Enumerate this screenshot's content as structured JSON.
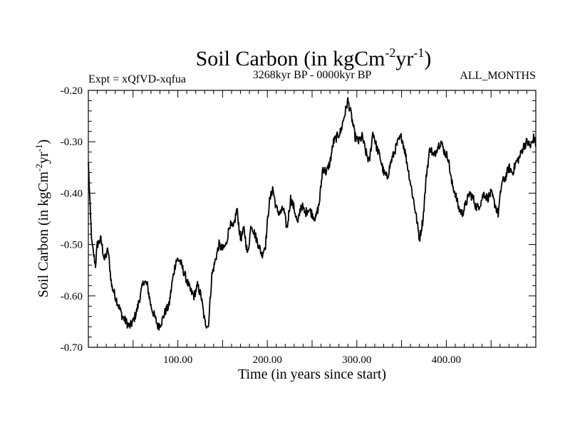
{
  "chart_data": {
    "type": "line",
    "title": {
      "main": "Soil Carbon (in kgCm",
      "sup1": "-2",
      "mid": "yr",
      "sup2": "-1",
      "end": ")"
    },
    "subtitle_left": "Expt = xQfVD-xqfua",
    "subtitle_center": "3268kyr BP - 0000kyr BP",
    "subtitle_right": "ALL_MONTHS",
    "xlabel": "Time (in years since start)",
    "ylabel": {
      "main": "Soil Carbon (in kgCm",
      "sup1": "-2",
      "mid": "yr",
      "sup2": "-1",
      "end": ")"
    },
    "xlim": [
      0,
      500
    ],
    "ylim": [
      -0.7,
      -0.2
    ],
    "x_ticks": [
      100,
      200,
      300,
      400
    ],
    "x_tick_labels": [
      "100.00",
      "200.00",
      "300.00",
      "400.00"
    ],
    "y_ticks": [
      -0.7,
      -0.6,
      -0.5,
      -0.4,
      -0.3,
      -0.2
    ],
    "y_tick_labels": [
      "-0.70",
      "-0.60",
      "-0.50",
      "-0.40",
      "-0.30",
      "-0.20"
    ],
    "line_color": "#000000",
    "series": [
      {
        "name": "Soil Carbon",
        "x": [
          0,
          2,
          4,
          6,
          8,
          10,
          14,
          18,
          22,
          26,
          30,
          34,
          38,
          42,
          46,
          50,
          54,
          58,
          62,
          66,
          70,
          74,
          78,
          82,
          86,
          90,
          94,
          98,
          102,
          106,
          110,
          114,
          118,
          122,
          126,
          130,
          134,
          138,
          142,
          146,
          150,
          154,
          158,
          162,
          166,
          170,
          174,
          178,
          182,
          186,
          190,
          194,
          198,
          202,
          206,
          210,
          214,
          218,
          222,
          226,
          230,
          234,
          238,
          242,
          246,
          250,
          254,
          258,
          262,
          266,
          270,
          274,
          278,
          282,
          286,
          290,
          294,
          298,
          302,
          306,
          310,
          314,
          318,
          322,
          326,
          330,
          334,
          338,
          342,
          346,
          350,
          354,
          358,
          362,
          366,
          370,
          374,
          378,
          382,
          386,
          390,
          394,
          398,
          402,
          406,
          410,
          414,
          418,
          422,
          426,
          430,
          434,
          438,
          442,
          446,
          450,
          454,
          458,
          462,
          466,
          470,
          474,
          478,
          482,
          486,
          490,
          494,
          498,
          500
        ],
        "values": [
          -0.34,
          -0.43,
          -0.5,
          -0.52,
          -0.54,
          -0.5,
          -0.49,
          -0.53,
          -0.51,
          -0.58,
          -0.6,
          -0.62,
          -0.64,
          -0.65,
          -0.66,
          -0.65,
          -0.63,
          -0.6,
          -0.57,
          -0.58,
          -0.62,
          -0.64,
          -0.66,
          -0.65,
          -0.63,
          -0.62,
          -0.57,
          -0.53,
          -0.53,
          -0.55,
          -0.57,
          -0.59,
          -0.6,
          -0.58,
          -0.6,
          -0.65,
          -0.66,
          -0.56,
          -0.53,
          -0.5,
          -0.51,
          -0.5,
          -0.46,
          -0.47,
          -0.43,
          -0.49,
          -0.47,
          -0.52,
          -0.46,
          -0.48,
          -0.5,
          -0.52,
          -0.5,
          -0.42,
          -0.39,
          -0.43,
          -0.44,
          -0.43,
          -0.47,
          -0.41,
          -0.43,
          -0.46,
          -0.42,
          -0.44,
          -0.43,
          -0.44,
          -0.45,
          -0.42,
          -0.35,
          -0.36,
          -0.34,
          -0.3,
          -0.29,
          -0.28,
          -0.25,
          -0.22,
          -0.25,
          -0.29,
          -0.3,
          -0.29,
          -0.32,
          -0.34,
          -0.28,
          -0.31,
          -0.33,
          -0.36,
          -0.37,
          -0.34,
          -0.32,
          -0.3,
          -0.29,
          -0.32,
          -0.36,
          -0.4,
          -0.44,
          -0.49,
          -0.45,
          -0.36,
          -0.31,
          -0.33,
          -0.31,
          -0.3,
          -0.32,
          -0.33,
          -0.38,
          -0.4,
          -0.43,
          -0.44,
          -0.42,
          -0.4,
          -0.41,
          -0.43,
          -0.42,
          -0.4,
          -0.41,
          -0.4,
          -0.42,
          -0.44,
          -0.38,
          -0.37,
          -0.35,
          -0.36,
          -0.34,
          -0.33,
          -0.31,
          -0.3,
          -0.31,
          -0.29,
          -0.31
        ]
      }
    ]
  }
}
